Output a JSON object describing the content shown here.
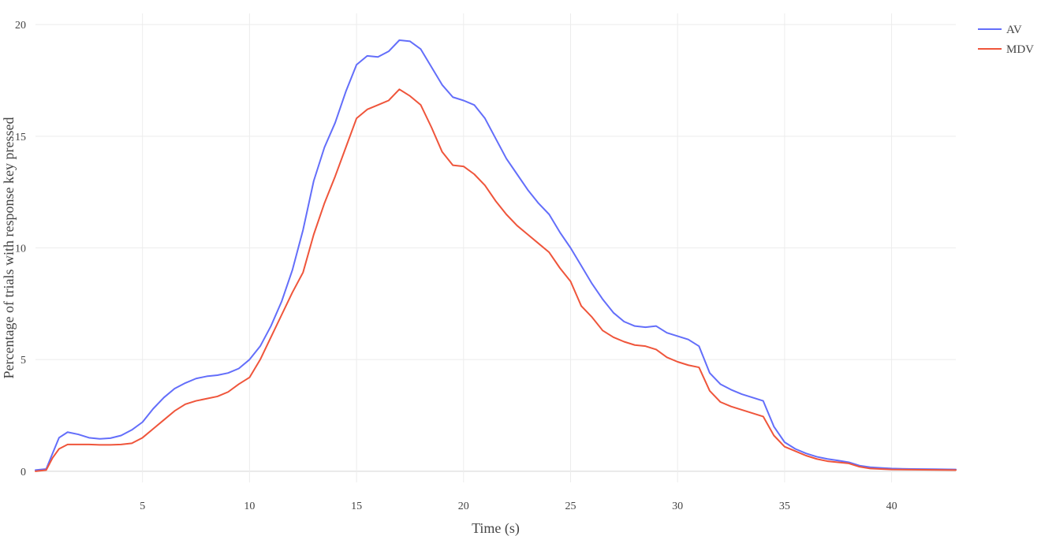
{
  "chart_data": {
    "type": "line",
    "title": "",
    "xlabel": "Time (s)",
    "ylabel": "Percentage of trials with response key pressed",
    "xlim": [
      0,
      43
    ],
    "ylim": [
      -0.5,
      20.5
    ],
    "xticks": [
      5,
      10,
      15,
      20,
      25,
      30,
      35,
      40
    ],
    "yticks": [
      0,
      5,
      10,
      15,
      20
    ],
    "grid": true,
    "legend": "top-right",
    "series": [
      {
        "name": "AV",
        "color": "#636efa",
        "points": [
          [
            0,
            0.05
          ],
          [
            0.5,
            0.1
          ],
          [
            0.8,
            0.8
          ],
          [
            1.1,
            1.5
          ],
          [
            1.5,
            1.75
          ],
          [
            2,
            1.65
          ],
          [
            2.5,
            1.5
          ],
          [
            3,
            1.45
          ],
          [
            3.5,
            1.48
          ],
          [
            4,
            1.6
          ],
          [
            4.5,
            1.85
          ],
          [
            5,
            2.2
          ],
          [
            5.5,
            2.8
          ],
          [
            6,
            3.3
          ],
          [
            6.5,
            3.7
          ],
          [
            7,
            3.95
          ],
          [
            7.5,
            4.15
          ],
          [
            8,
            4.25
          ],
          [
            8.5,
            4.3
          ],
          [
            9,
            4.4
          ],
          [
            9.5,
            4.6
          ],
          [
            10,
            5.0
          ],
          [
            10.5,
            5.6
          ],
          [
            11,
            6.5
          ],
          [
            11.5,
            7.6
          ],
          [
            12,
            9.0
          ],
          [
            12.5,
            10.8
          ],
          [
            13,
            13.0
          ],
          [
            13.5,
            14.5
          ],
          [
            14,
            15.6
          ],
          [
            14.5,
            17.0
          ],
          [
            15,
            18.2
          ],
          [
            15.5,
            18.6
          ],
          [
            16,
            18.55
          ],
          [
            16.5,
            18.8
          ],
          [
            17,
            19.3
          ],
          [
            17.5,
            19.25
          ],
          [
            18,
            18.9
          ],
          [
            18.5,
            18.1
          ],
          [
            19,
            17.3
          ],
          [
            19.5,
            16.75
          ],
          [
            20,
            16.6
          ],
          [
            20.5,
            16.4
          ],
          [
            21,
            15.8
          ],
          [
            21.5,
            14.9
          ],
          [
            22,
            14.0
          ],
          [
            22.5,
            13.3
          ],
          [
            23,
            12.6
          ],
          [
            23.5,
            12.0
          ],
          [
            24,
            11.5
          ],
          [
            24.5,
            10.7
          ],
          [
            25,
            10.0
          ],
          [
            25.5,
            9.2
          ],
          [
            26,
            8.4
          ],
          [
            26.5,
            7.7
          ],
          [
            27,
            7.1
          ],
          [
            27.5,
            6.7
          ],
          [
            28,
            6.5
          ],
          [
            28.5,
            6.45
          ],
          [
            29,
            6.5
          ],
          [
            29.5,
            6.2
          ],
          [
            30,
            6.05
          ],
          [
            30.5,
            5.9
          ],
          [
            31,
            5.6
          ],
          [
            31.5,
            4.4
          ],
          [
            32,
            3.9
          ],
          [
            32.5,
            3.65
          ],
          [
            33,
            3.45
          ],
          [
            33.5,
            3.3
          ],
          [
            34,
            3.15
          ],
          [
            34.5,
            2.0
          ],
          [
            35,
            1.3
          ],
          [
            35.5,
            1.0
          ],
          [
            36,
            0.8
          ],
          [
            36.5,
            0.65
          ],
          [
            37,
            0.55
          ],
          [
            37.5,
            0.48
          ],
          [
            38,
            0.4
          ],
          [
            38.5,
            0.25
          ],
          [
            39,
            0.18
          ],
          [
            39.5,
            0.15
          ],
          [
            40,
            0.12
          ],
          [
            41,
            0.1
          ],
          [
            42,
            0.09
          ],
          [
            43,
            0.08
          ]
        ]
      },
      {
        "name": "MDV",
        "color": "#ef553b",
        "points": [
          [
            0,
            0.0
          ],
          [
            0.5,
            0.05
          ],
          [
            0.8,
            0.6
          ],
          [
            1.1,
            1.0
          ],
          [
            1.5,
            1.2
          ],
          [
            2,
            1.2
          ],
          [
            2.5,
            1.2
          ],
          [
            3,
            1.18
          ],
          [
            3.5,
            1.18
          ],
          [
            4,
            1.2
          ],
          [
            4.5,
            1.25
          ],
          [
            5,
            1.5
          ],
          [
            5.5,
            1.9
          ],
          [
            6,
            2.3
          ],
          [
            6.5,
            2.7
          ],
          [
            7,
            3.0
          ],
          [
            7.5,
            3.15
          ],
          [
            8,
            3.25
          ],
          [
            8.5,
            3.35
          ],
          [
            9,
            3.55
          ],
          [
            9.5,
            3.9
          ],
          [
            10,
            4.2
          ],
          [
            10.5,
            5.0
          ],
          [
            11,
            6.0
          ],
          [
            11.5,
            7.0
          ],
          [
            12,
            8.0
          ],
          [
            12.5,
            8.9
          ],
          [
            13,
            10.6
          ],
          [
            13.5,
            12.0
          ],
          [
            14,
            13.2
          ],
          [
            14.5,
            14.5
          ],
          [
            15,
            15.8
          ],
          [
            15.5,
            16.2
          ],
          [
            16,
            16.4
          ],
          [
            16.5,
            16.6
          ],
          [
            17,
            17.1
          ],
          [
            17.5,
            16.8
          ],
          [
            18,
            16.4
          ],
          [
            18.5,
            15.4
          ],
          [
            19,
            14.3
          ],
          [
            19.5,
            13.7
          ],
          [
            20,
            13.65
          ],
          [
            20.5,
            13.3
          ],
          [
            21,
            12.8
          ],
          [
            21.5,
            12.1
          ],
          [
            22,
            11.5
          ],
          [
            22.5,
            11.0
          ],
          [
            23,
            10.6
          ],
          [
            23.5,
            10.2
          ],
          [
            24,
            9.8
          ],
          [
            24.5,
            9.1
          ],
          [
            25,
            8.5
          ],
          [
            25.5,
            7.4
          ],
          [
            26,
            6.9
          ],
          [
            26.5,
            6.3
          ],
          [
            27,
            6.0
          ],
          [
            27.5,
            5.8
          ],
          [
            28,
            5.65
          ],
          [
            28.5,
            5.6
          ],
          [
            29,
            5.45
          ],
          [
            29.5,
            5.1
          ],
          [
            30,
            4.9
          ],
          [
            30.5,
            4.75
          ],
          [
            31,
            4.65
          ],
          [
            31.5,
            3.6
          ],
          [
            32,
            3.1
          ],
          [
            32.5,
            2.9
          ],
          [
            33,
            2.75
          ],
          [
            33.5,
            2.6
          ],
          [
            34,
            2.45
          ],
          [
            34.5,
            1.6
          ],
          [
            35,
            1.1
          ],
          [
            35.5,
            0.9
          ],
          [
            36,
            0.7
          ],
          [
            36.5,
            0.55
          ],
          [
            37,
            0.45
          ],
          [
            37.5,
            0.4
          ],
          [
            38,
            0.35
          ],
          [
            38.5,
            0.2
          ],
          [
            39,
            0.12
          ],
          [
            39.5,
            0.1
          ],
          [
            40,
            0.08
          ],
          [
            41,
            0.07
          ],
          [
            42,
            0.06
          ],
          [
            43,
            0.05
          ]
        ]
      }
    ]
  }
}
